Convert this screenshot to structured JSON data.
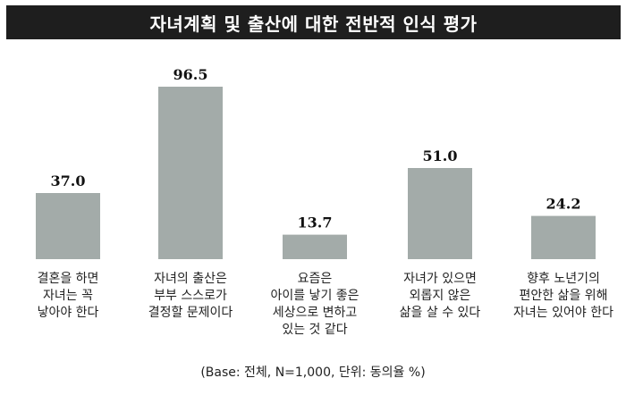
{
  "chart_data": {
    "type": "bar",
    "title": "자녀계획 및 출산에 대한 전반적 인식 평가",
    "categories": [
      "결혼을 하면\n자녀는 꼭\n낳아야 한다",
      "자녀의 출산은\n부부 스스로가\n결정할 문제이다",
      "요즘은\n아이를 낳기 좋은\n세상으로 변하고\n있는 것 같다",
      "자녀가 있으면\n외롭지 않은\n삶을 살 수 있다",
      "향후 노년기의\n편안한 삶을 위해\n자녀는 있어야 한다"
    ],
    "values": [
      37.0,
      96.5,
      13.7,
      51.0,
      24.2
    ],
    "value_labels": [
      "37.0",
      "96.5",
      "13.7",
      "51.0",
      "24.2"
    ],
    "ylim": [
      0,
      100
    ],
    "grid": false,
    "bar_color": "#a3aba9",
    "footnote": "(Base: 전체, N=1,000, 단위: 동의율 %)"
  }
}
